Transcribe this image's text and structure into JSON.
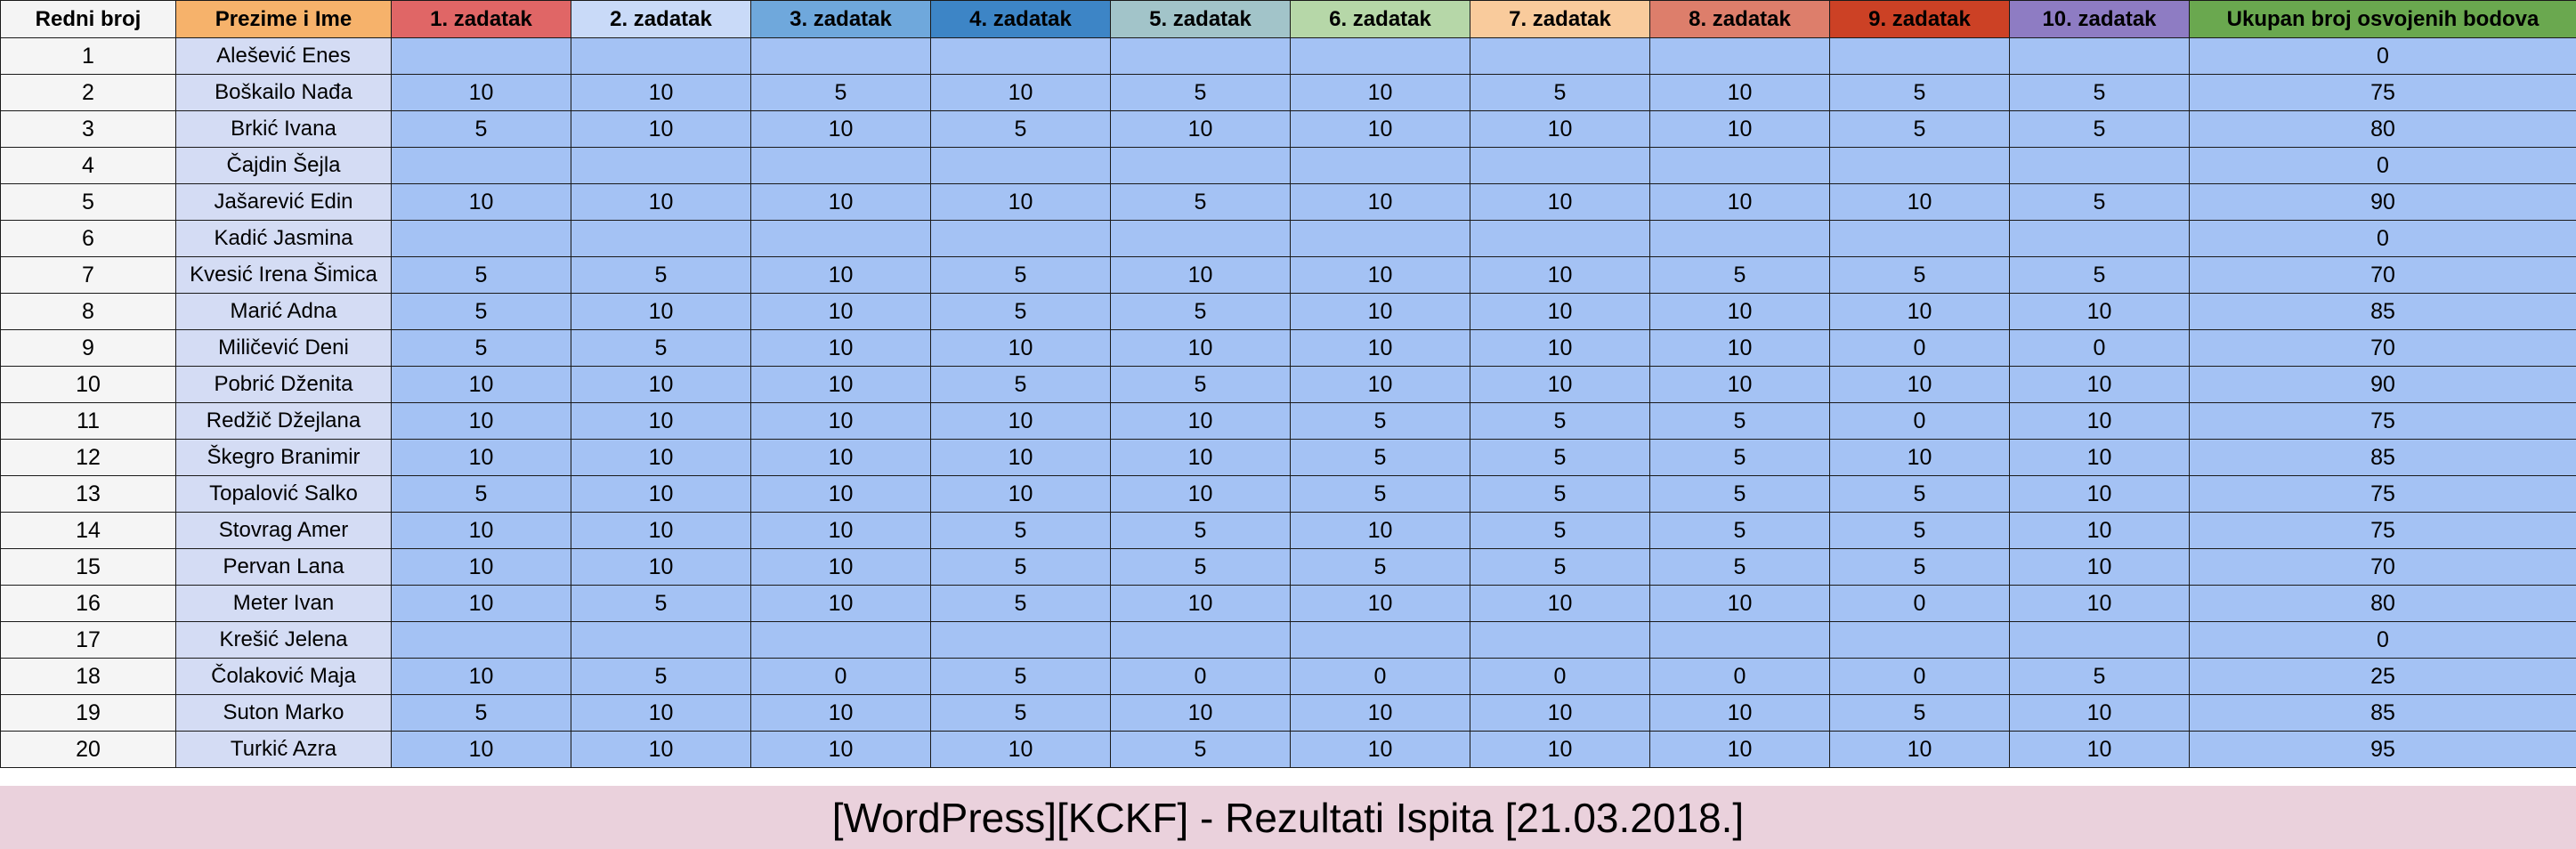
{
  "title": "[WordPress][KCKF] - Rezultati Ispita [21.03.2018.]",
  "columns": [
    {
      "label": "Redni broj",
      "color": "#f4f4f4"
    },
    {
      "label": "Prezime i Ime",
      "color": "#f6b26b"
    },
    {
      "label": "1. zadatak",
      "color": "#e06666"
    },
    {
      "label": "2. zadatak",
      "color": "#c9daf8"
    },
    {
      "label": "3. zadatak",
      "color": "#6fa8dc"
    },
    {
      "label": "4. zadatak",
      "color": "#3d85c6"
    },
    {
      "label": "5. zadatak",
      "color": "#a2c4c9"
    },
    {
      "label": "6. zadatak",
      "color": "#b6d7a8"
    },
    {
      "label": "7. zadatak",
      "color": "#f9cb9c"
    },
    {
      "label": "8. zadatak",
      "color": "#dd7e6b"
    },
    {
      "label": "9. zadatak",
      "color": "#cc4125"
    },
    {
      "label": "10. zadatak",
      "color": "#8e7cc3"
    },
    {
      "label": "Ukupan broj osvojenih bodova",
      "color": "#6aa84f"
    }
  ],
  "rows": [
    {
      "num": "1",
      "name": "Alešević Enes",
      "scores": [
        "",
        "",
        "",
        "",
        "",
        "",
        "",
        "",
        "",
        ""
      ],
      "total": "0"
    },
    {
      "num": "2",
      "name": "Boškailo Nađa",
      "scores": [
        "10",
        "10",
        "5",
        "10",
        "5",
        "10",
        "5",
        "10",
        "5",
        "5"
      ],
      "total": "75"
    },
    {
      "num": "3",
      "name": "Brkić Ivana",
      "scores": [
        "5",
        "10",
        "10",
        "5",
        "10",
        "10",
        "10",
        "10",
        "5",
        "5"
      ],
      "total": "80"
    },
    {
      "num": "4",
      "name": "Čajdin Šejla",
      "scores": [
        "",
        "",
        "",
        "",
        "",
        "",
        "",
        "",
        "",
        ""
      ],
      "total": "0"
    },
    {
      "num": "5",
      "name": "Jašarević Edin",
      "scores": [
        "10",
        "10",
        "10",
        "10",
        "5",
        "10",
        "10",
        "10",
        "10",
        "5"
      ],
      "total": "90"
    },
    {
      "num": "6",
      "name": "Kadić Jasmina",
      "scores": [
        "",
        "",
        "",
        "",
        "",
        "",
        "",
        "",
        "",
        ""
      ],
      "total": "0"
    },
    {
      "num": "7",
      "name": "Kvesić Irena Šimica",
      "scores": [
        "5",
        "5",
        "10",
        "5",
        "10",
        "10",
        "10",
        "5",
        "5",
        "5"
      ],
      "total": "70"
    },
    {
      "num": "8",
      "name": "Marić Adna",
      "scores": [
        "5",
        "10",
        "10",
        "5",
        "5",
        "10",
        "10",
        "10",
        "10",
        "10"
      ],
      "total": "85"
    },
    {
      "num": "9",
      "name": "Miličević Deni",
      "scores": [
        "5",
        "5",
        "10",
        "10",
        "10",
        "10",
        "10",
        "10",
        "0",
        "0"
      ],
      "total": "70"
    },
    {
      "num": "10",
      "name": "Pobrić Dženita",
      "scores": [
        "10",
        "10",
        "10",
        "5",
        "5",
        "10",
        "10",
        "10",
        "10",
        "10"
      ],
      "total": "90"
    },
    {
      "num": "11",
      "name": "Redžič Džejlana",
      "scores": [
        "10",
        "10",
        "10",
        "10",
        "10",
        "5",
        "5",
        "5",
        "0",
        "10"
      ],
      "total": "75"
    },
    {
      "num": "12",
      "name": "Škegro Branimir",
      "scores": [
        "10",
        "10",
        "10",
        "10",
        "10",
        "5",
        "5",
        "5",
        "10",
        "10"
      ],
      "total": "85"
    },
    {
      "num": "13",
      "name": "Topalović Salko",
      "scores": [
        "5",
        "10",
        "10",
        "10",
        "10",
        "5",
        "5",
        "5",
        "5",
        "10"
      ],
      "total": "75"
    },
    {
      "num": "14",
      "name": "Stovrag Amer",
      "scores": [
        "10",
        "10",
        "10",
        "5",
        "5",
        "10",
        "5",
        "5",
        "5",
        "10"
      ],
      "total": "75"
    },
    {
      "num": "15",
      "name": "Pervan Lana",
      "scores": [
        "10",
        "10",
        "10",
        "5",
        "5",
        "5",
        "5",
        "5",
        "5",
        "10"
      ],
      "total": "70"
    },
    {
      "num": "16",
      "name": "Meter Ivan",
      "scores": [
        "10",
        "5",
        "10",
        "5",
        "10",
        "10",
        "10",
        "10",
        "0",
        "10"
      ],
      "total": "80"
    },
    {
      "num": "17",
      "name": "Krešić Jelena",
      "scores": [
        "",
        "",
        "",
        "",
        "",
        "",
        "",
        "",
        "",
        ""
      ],
      "total": "0"
    },
    {
      "num": "18",
      "name": "Čolaković Maja",
      "scores": [
        "10",
        "5",
        "0",
        "5",
        "0",
        "0",
        "0",
        "0",
        "0",
        "5"
      ],
      "total": "25"
    },
    {
      "num": "19",
      "name": "Suton Marko",
      "scores": [
        "5",
        "10",
        "10",
        "5",
        "10",
        "10",
        "10",
        "10",
        "5",
        "10"
      ],
      "total": "85"
    },
    {
      "num": "20",
      "name": "Turkić Azra",
      "scores": [
        "10",
        "10",
        "10",
        "10",
        "5",
        "10",
        "10",
        "10",
        "10",
        "10"
      ],
      "total": "95"
    }
  ]
}
